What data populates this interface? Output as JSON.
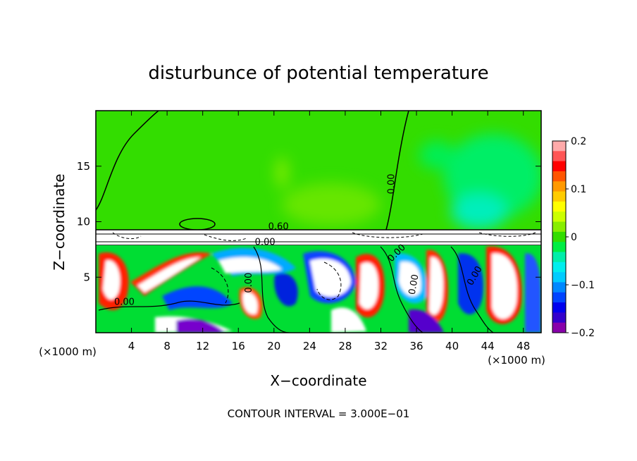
{
  "chart_data": {
    "type": "heatmap",
    "title": "disturbunce of potential temperature",
    "xlabel": "X−coordinate",
    "ylabel": "Z−coordinate",
    "x_unit": "(×1000 m)",
    "x_unit_right": "(×1000 m)",
    "footer": "CONTOUR INTERVAL = 3.000E−01",
    "xlim": [
      0,
      50
    ],
    "ylim": [
      0,
      20
    ],
    "x_ticks": [
      4,
      8,
      12,
      16,
      20,
      24,
      28,
      32,
      36,
      40,
      44,
      48
    ],
    "x_tick_labels": [
      "4",
      "8",
      "12",
      "16",
      "20",
      "24",
      "28",
      "32",
      "36",
      "40",
      "44",
      "48"
    ],
    "y_ticks": [
      5,
      10,
      15
    ],
    "y_tick_labels": [
      "5",
      "10",
      "15"
    ],
    "colorbar": {
      "range": [
        -0.2,
        0.2
      ],
      "ticks": [
        0.2,
        0.1,
        0,
        -0.1,
        -0.2
      ],
      "tick_labels": [
        "0.2",
        "0.1",
        "0",
        "−0.1",
        "−0.2"
      ],
      "colors": [
        "#ffaaaa",
        "#ff5555",
        "#ff0000",
        "#ff5500",
        "#ff9900",
        "#ffcc00",
        "#ffff00",
        "#ccff00",
        "#88ee00",
        "#33dd00",
        "#00ee44",
        "#00eeaa",
        "#00eeee",
        "#00ccff",
        "#0088ff",
        "#0044ff",
        "#0000ee",
        "#3300cc",
        "#8800aa"
      ]
    },
    "contour_labels": [
      {
        "text": "0.00",
        "x": 33.5,
        "y": 13.4,
        "angle": -90
      },
      {
        "text": "0.60",
        "x": 20.5,
        "y": 9.3,
        "angle": 0
      },
      {
        "text": "0.00",
        "x": 19.0,
        "y": 7.9,
        "angle": 0
      },
      {
        "text": "0.00",
        "x": 34.0,
        "y": 7.0,
        "angle": -45
      },
      {
        "text": "0.00",
        "x": 17.5,
        "y": 4.5,
        "angle": -90
      },
      {
        "text": "0.00",
        "x": 36.0,
        "y": 4.3,
        "angle": -80
      },
      {
        "text": "0.00",
        "x": 42.8,
        "y": 5.0,
        "angle": -60
      },
      {
        "text": "0.00",
        "x": 3.2,
        "y": 2.5,
        "angle": 0
      }
    ]
  }
}
